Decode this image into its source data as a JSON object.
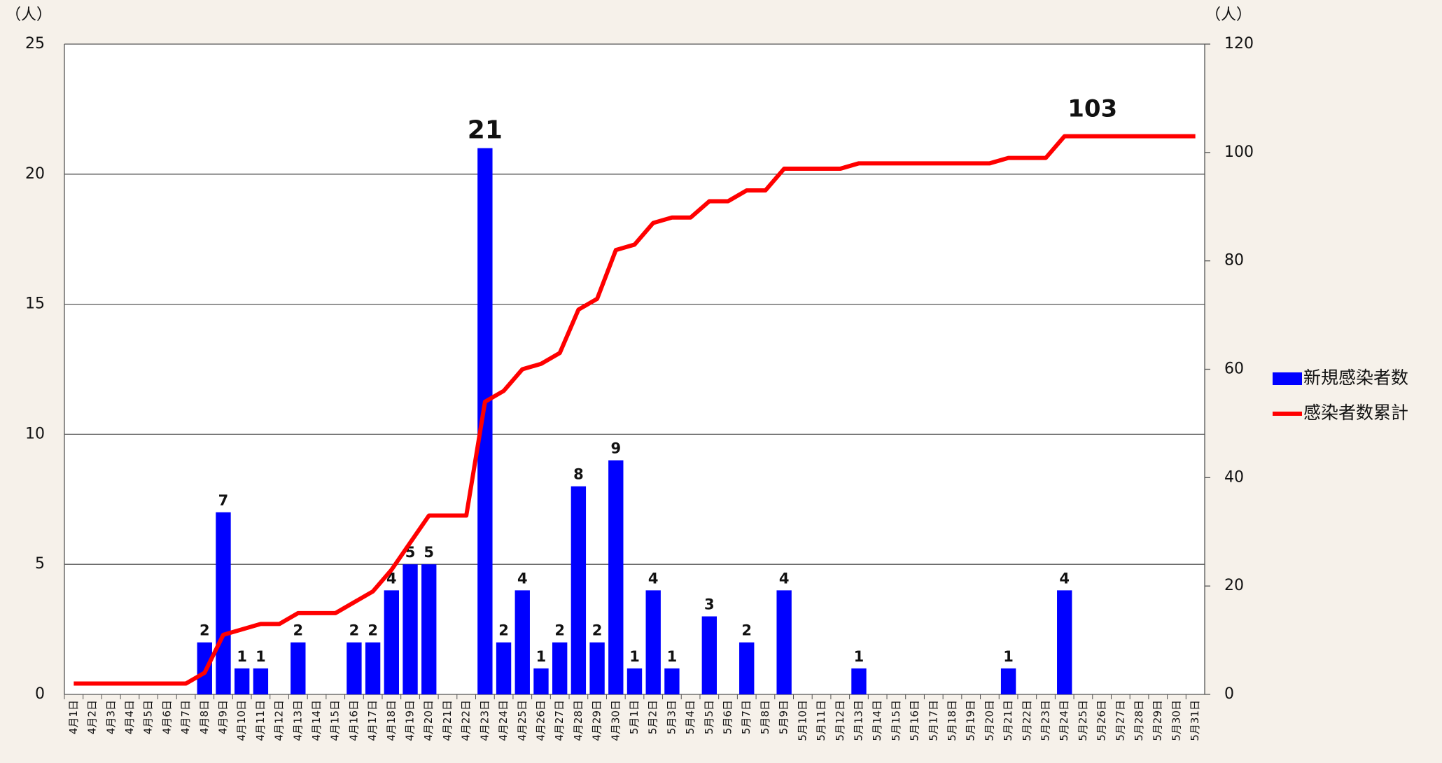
{
  "chart_data": {
    "type": "combo",
    "ylabel": "（人）",
    "y2label": "（人）",
    "categories": [
      "4月1日",
      "4月2日",
      "4月3日",
      "4月4日",
      "4月5日",
      "4月6日",
      "4月7日",
      "4月8日",
      "4月9日",
      "4月10日",
      "4月11日",
      "4月12日",
      "4月13日",
      "4月14日",
      "4月15日",
      "4月16日",
      "4月17日",
      "4月18日",
      "4月19日",
      "4月20日",
      "4月21日",
      "4月22日",
      "4月23日",
      "4月24日",
      "4月25日",
      "4月26日",
      "4月27日",
      "4月28日",
      "4月29日",
      "4月30日",
      "5月1日",
      "5月2日",
      "5月3日",
      "5月4日",
      "5月5日",
      "5月6日",
      "5月7日",
      "5月8日",
      "5月9日",
      "5月10日",
      "5月11日",
      "5月12日",
      "5月13日",
      "5月14日",
      "5月15日",
      "5月16日",
      "5月17日",
      "5月18日",
      "5月19日",
      "5月20日",
      "5月21日",
      "5月22日",
      "5月23日",
      "5月24日",
      "5月25日",
      "5月26日",
      "5月27日",
      "5月28日",
      "5月29日",
      "5月30日",
      "5月31日"
    ],
    "series": [
      {
        "name": "新規感染者数",
        "type": "bar",
        "color": "#0000ff",
        "values": [
          0,
          0,
          0,
          0,
          0,
          0,
          0,
          2,
          7,
          1,
          1,
          0,
          2,
          0,
          0,
          2,
          2,
          4,
          5,
          5,
          0,
          0,
          21,
          2,
          4,
          1,
          2,
          8,
          2,
          9,
          1,
          4,
          1,
          0,
          3,
          0,
          2,
          0,
          4,
          0,
          0,
          0,
          1,
          0,
          0,
          0,
          0,
          0,
          0,
          0,
          1,
          0,
          0,
          4,
          0,
          0,
          0,
          0,
          0,
          0,
          0
        ]
      },
      {
        "name": "感染者数累計",
        "type": "line",
        "axis": "y2",
        "color": "#ff0000",
        "values": [
          2,
          2,
          2,
          2,
          2,
          2,
          2,
          4,
          11,
          12,
          13,
          13,
          15,
          15,
          15,
          17,
          19,
          23,
          28,
          33,
          33,
          33,
          54,
          56,
          60,
          61,
          63,
          71,
          73,
          82,
          83,
          87,
          88,
          88,
          91,
          91,
          93,
          93,
          97,
          97,
          97,
          97,
          98,
          98,
          98,
          98,
          98,
          98,
          98,
          98,
          99,
          99,
          99,
          103,
          103,
          103,
          103,
          103,
          103,
          103,
          103
        ],
        "value_labels": [
          null,
          null,
          null,
          null,
          null,
          null,
          null,
          null,
          null,
          null,
          null,
          null,
          null,
          null,
          null,
          null,
          null,
          null,
          null,
          null,
          null,
          null,
          null,
          null,
          null,
          null,
          null,
          null,
          null,
          null,
          null,
          null,
          null,
          null,
          null,
          null,
          null,
          null,
          null,
          null,
          null,
          null,
          null,
          null,
          null,
          null,
          null,
          null,
          null,
          null,
          null,
          null,
          null,
          "103",
          null,
          null,
          null,
          null,
          null,
          null,
          null
        ]
      }
    ],
    "ylim": [
      0,
      25
    ],
    "yticks": [
      0,
      5,
      10,
      15,
      20,
      25
    ],
    "y2lim": [
      0,
      120
    ],
    "y2ticks": [
      0,
      20,
      40,
      60,
      80,
      100,
      120
    ],
    "grid": true,
    "legend": "right"
  }
}
